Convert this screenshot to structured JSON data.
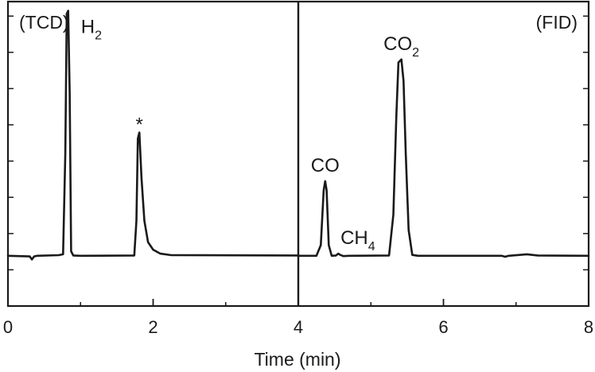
{
  "chart_data": {
    "type": "line",
    "xlabel": "Time (min)",
    "ylabel": "",
    "xlim": [
      0,
      8
    ],
    "xticks": [
      "0",
      "2",
      "4",
      "6",
      "8"
    ],
    "y_scale": "relative intensity, unlabeled",
    "ylim": [
      0,
      1
    ],
    "grid": false,
    "divider_x": 4,
    "panels": [
      {
        "label": "(TCD)",
        "x_range": [
          0,
          4
        ]
      },
      {
        "label": "(FID)",
        "x_range": [
          4,
          8
        ]
      }
    ],
    "peak_labels": [
      {
        "text": "H",
        "sub": "2",
        "x": 0.83
      },
      {
        "text": "*",
        "sub": "",
        "x": 1.81
      },
      {
        "text": "CO",
        "sub": "",
        "x": 4.37
      },
      {
        "text": "CH",
        "sub": "4",
        "x": 4.56
      },
      {
        "text": "CO",
        "sub": "2",
        "x": 5.42
      }
    ],
    "series": [
      {
        "x": [
          0.0,
          0.3,
          0.33,
          0.36,
          0.4,
          0.7,
          0.76,
          0.79,
          0.81,
          0.83,
          0.85,
          0.87,
          0.9,
          1.0,
          1.74,
          1.77,
          1.79,
          1.81,
          1.84,
          1.88,
          1.93,
          2.0,
          2.1,
          2.25,
          3.99
        ],
        "y": [
          0.165,
          0.163,
          0.153,
          0.163,
          0.165,
          0.167,
          0.17,
          0.5,
          0.96,
          0.97,
          0.7,
          0.18,
          0.166,
          0.165,
          0.166,
          0.28,
          0.55,
          0.57,
          0.42,
          0.28,
          0.21,
          0.185,
          0.172,
          0.167,
          0.166
        ]
      },
      {
        "x": [
          4.01,
          4.25,
          4.31,
          4.35,
          4.37,
          4.39,
          4.42,
          4.46,
          4.52,
          4.55,
          4.58,
          4.62,
          4.7,
          5.25,
          5.31,
          5.35,
          5.38,
          5.42,
          5.45,
          5.48,
          5.52,
          5.57,
          5.65,
          6.8,
          6.85,
          6.9,
          7.05,
          7.15,
          7.3,
          8.0
        ],
        "y": [
          0.165,
          0.165,
          0.2,
          0.38,
          0.41,
          0.38,
          0.2,
          0.165,
          0.166,
          0.172,
          0.168,
          0.164,
          0.165,
          0.166,
          0.3,
          0.62,
          0.8,
          0.81,
          0.74,
          0.5,
          0.25,
          0.168,
          0.165,
          0.165,
          0.162,
          0.165,
          0.168,
          0.17,
          0.166,
          0.165
        ]
      }
    ]
  }
}
